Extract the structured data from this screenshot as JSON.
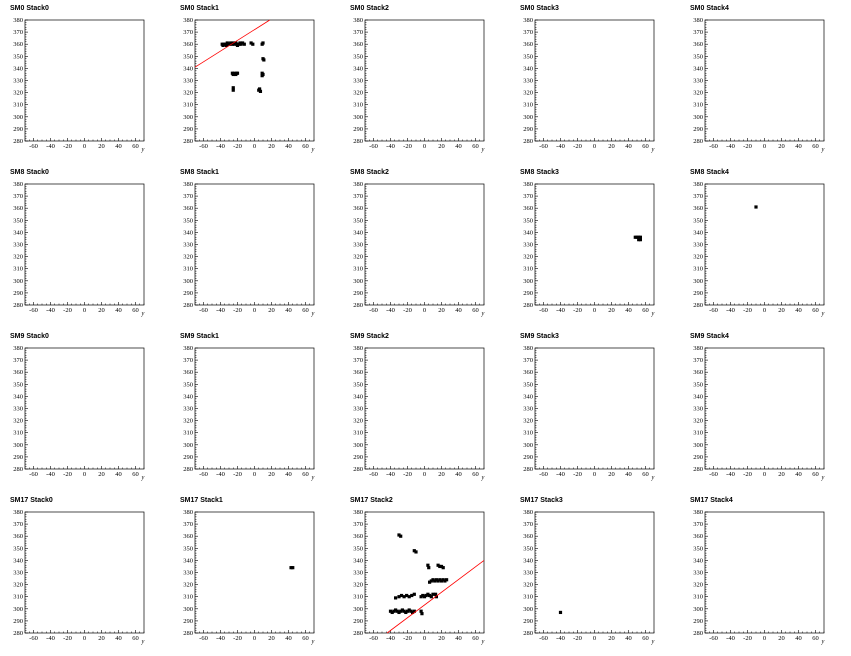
{
  "axis": {
    "xlabel": "y",
    "xlim": [
      -70,
      70
    ],
    "ylim": [
      280,
      380
    ],
    "xticks": [
      -60,
      -40,
      -20,
      0,
      20,
      40,
      60
    ],
    "yticks": [
      280,
      290,
      300,
      310,
      320,
      330,
      340,
      350,
      360,
      370,
      380
    ]
  },
  "colors": {
    "fit_line": "#ff0000",
    "points": "#000000",
    "frame": "#000000"
  },
  "chart_data": [
    {
      "type": "scatter",
      "title": "SM0 Stack0",
      "points": [],
      "fit": null
    },
    {
      "type": "scatter",
      "title": "SM0 Stack1",
      "points": [
        [
          -38,
          360
        ],
        [
          -36,
          360
        ],
        [
          -34,
          360
        ],
        [
          -32,
          361
        ],
        [
          -30,
          360
        ],
        [
          -28,
          361
        ],
        [
          -26,
          360
        ],
        [
          -24,
          360
        ],
        [
          -22,
          361
        ],
        [
          -20,
          359
        ],
        [
          -18,
          360
        ],
        [
          -16,
          360
        ],
        [
          -14,
          361
        ],
        [
          -12,
          360
        ],
        [
          -37,
          359
        ],
        [
          -33,
          359
        ],
        [
          -29,
          360
        ],
        [
          -25,
          361
        ],
        [
          -21,
          360
        ],
        [
          -17,
          361
        ],
        [
          -4,
          361
        ],
        [
          -2,
          360
        ],
        [
          10,
          361
        ],
        [
          9,
          360
        ],
        [
          10,
          348
        ],
        [
          11,
          347
        ],
        [
          -26,
          336
        ],
        [
          -24,
          336
        ],
        [
          -22,
          335
        ],
        [
          -20,
          336
        ],
        [
          -25,
          335
        ],
        [
          -21,
          336
        ],
        [
          9,
          336
        ],
        [
          10,
          335
        ],
        [
          9,
          334
        ],
        [
          -25,
          324
        ],
        [
          -25,
          322
        ],
        [
          6,
          323
        ],
        [
          5,
          322
        ],
        [
          7,
          321
        ]
      ],
      "fit": [
        [
          -70,
          341
        ],
        [
          18,
          380
        ]
      ]
    },
    {
      "type": "scatter",
      "title": "SM0 Stack2",
      "points": [],
      "fit": null
    },
    {
      "type": "scatter",
      "title": "SM0 Stack3",
      "points": [],
      "fit": null
    },
    {
      "type": "scatter",
      "title": "SM0 Stack4",
      "points": [],
      "fit": null
    },
    {
      "type": "scatter",
      "title": "SM8 Stack0",
      "points": [],
      "fit": null
    },
    {
      "type": "scatter",
      "title": "SM8 Stack1",
      "points": [],
      "fit": null
    },
    {
      "type": "scatter",
      "title": "SM8 Stack2",
      "points": [],
      "fit": null
    },
    {
      "type": "scatter",
      "title": "SM8 Stack3",
      "points": [
        [
          48,
          336
        ],
        [
          50,
          336
        ],
        [
          52,
          336
        ],
        [
          54,
          336
        ],
        [
          52,
          334
        ],
        [
          54,
          334
        ]
      ],
      "fit": null
    },
    {
      "type": "scatter",
      "title": "SM8 Stack4",
      "points": [
        [
          -10,
          361
        ]
      ],
      "fit": null
    },
    {
      "type": "scatter",
      "title": "SM9 Stack0",
      "points": [],
      "fit": null
    },
    {
      "type": "scatter",
      "title": "SM9 Stack1",
      "points": [],
      "fit": null
    },
    {
      "type": "scatter",
      "title": "SM9 Stack2",
      "points": [],
      "fit": null
    },
    {
      "type": "scatter",
      "title": "SM9 Stack3",
      "points": [],
      "fit": null
    },
    {
      "type": "scatter",
      "title": "SM9 Stack4",
      "points": [],
      "fit": null
    },
    {
      "type": "scatter",
      "title": "SM17 Stack0",
      "points": [],
      "fit": null
    },
    {
      "type": "scatter",
      "title": "SM17 Stack1",
      "points": [
        [
          43,
          334
        ],
        [
          45,
          334
        ]
      ],
      "fit": null
    },
    {
      "type": "scatter",
      "title": "SM17 Stack2",
      "points": [
        [
          -30,
          361
        ],
        [
          -28,
          360
        ],
        [
          -12,
          348
        ],
        [
          -10,
          347
        ],
        [
          4,
          336
        ],
        [
          5,
          334
        ],
        [
          16,
          336
        ],
        [
          18,
          335
        ],
        [
          20,
          335
        ],
        [
          22,
          334
        ],
        [
          6,
          322
        ],
        [
          8,
          323
        ],
        [
          10,
          324
        ],
        [
          12,
          323
        ],
        [
          14,
          324
        ],
        [
          16,
          323
        ],
        [
          18,
          324
        ],
        [
          20,
          323
        ],
        [
          22,
          324
        ],
        [
          24,
          323
        ],
        [
          26,
          324
        ],
        [
          -30,
          310
        ],
        [
          -27,
          311
        ],
        [
          -24,
          310
        ],
        [
          -21,
          311
        ],
        [
          -18,
          310
        ],
        [
          -15,
          311
        ],
        [
          -12,
          312
        ],
        [
          -34,
          309
        ],
        [
          -4,
          310
        ],
        [
          -2,
          311
        ],
        [
          0,
          310
        ],
        [
          2,
          311
        ],
        [
          4,
          312
        ],
        [
          6,
          311
        ],
        [
          8,
          310
        ],
        [
          10,
          312
        ],
        [
          -40,
          298
        ],
        [
          -38,
          297
        ],
        [
          -36,
          298
        ],
        [
          -34,
          299
        ],
        [
          -32,
          298
        ],
        [
          -30,
          297
        ],
        [
          -28,
          298
        ],
        [
          -26,
          299
        ],
        [
          -24,
          298
        ],
        [
          -22,
          297
        ],
        [
          -20,
          298
        ],
        [
          -18,
          299
        ],
        [
          -16,
          298
        ],
        [
          -14,
          297
        ],
        [
          -12,
          298
        ],
        [
          -4,
          298
        ],
        [
          -3,
          296
        ],
        [
          14,
          310
        ],
        [
          13,
          312
        ]
      ],
      "fit": [
        [
          -44,
          280
        ],
        [
          70,
          340
        ]
      ]
    },
    {
      "type": "scatter",
      "title": "SM17 Stack3",
      "points": [
        [
          -40,
          297
        ]
      ],
      "fit": null
    },
    {
      "type": "scatter",
      "title": "SM17 Stack4",
      "points": [],
      "fit": null
    }
  ]
}
